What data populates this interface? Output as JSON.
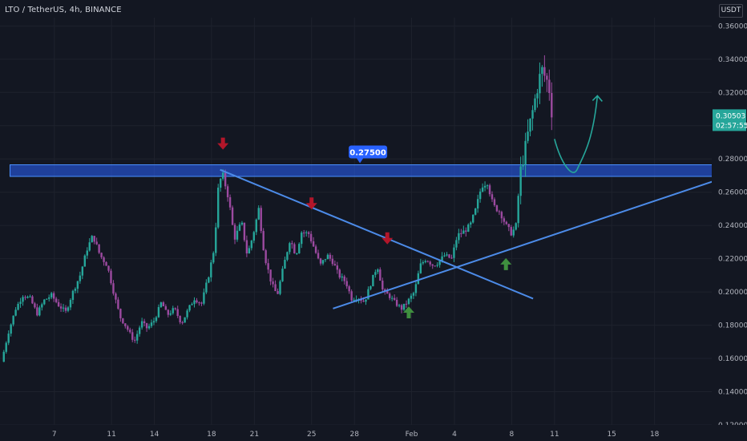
{
  "header": {
    "symbol_line": "LTO / TetherUS, 4h, BINANCE",
    "currency": "USDT"
  },
  "colors": {
    "background": "#131722",
    "grid": "#1e222d",
    "bull": "#26a69a",
    "bear": "#9c4aa0",
    "axis_text": "#b2b5be",
    "drawing": "#4c8be8",
    "zone_fill": "#2962ff",
    "down_arrow": "#b2162a",
    "up_arrow": "#3f8f3f",
    "projection": "#26a69a",
    "price_label": "#26a69a"
  },
  "chart_data": {
    "type": "candlestick",
    "timeframe": "4h",
    "exchange": "BINANCE",
    "ylim": [
      0.12,
      0.365
    ],
    "y_ticks": [
      "0.36000",
      "0.34000",
      "0.32000",
      "0.30000",
      "0.28000",
      "0.26000",
      "0.24000",
      "0.22000",
      "0.20000",
      "0.18000",
      "0.16000",
      "0.14000",
      "0.12000"
    ],
    "x_ticks": [
      {
        "label": "7",
        "day": 7
      },
      {
        "label": "11",
        "day": 11
      },
      {
        "label": "14",
        "day": 14
      },
      {
        "label": "18",
        "day": 18
      },
      {
        "label": "21",
        "day": 21
      },
      {
        "label": "25",
        "day": 25
      },
      {
        "label": "28",
        "day": 28
      },
      {
        "label": "Feb",
        "day": 32
      },
      {
        "label": "4",
        "day": 35
      },
      {
        "label": "8",
        "day": 39
      },
      {
        "label": "11",
        "day": 42
      },
      {
        "label": "15",
        "day": 46
      },
      {
        "label": "18",
        "day": 49
      }
    ],
    "price_path": [
      [
        3.3,
        0.158
      ],
      [
        3.8,
        0.176
      ],
      [
        4.3,
        0.19
      ],
      [
        4.8,
        0.198
      ],
      [
        5.3,
        0.196
      ],
      [
        5.8,
        0.187
      ],
      [
        6.3,
        0.195
      ],
      [
        6.8,
        0.198
      ],
      [
        7.3,
        0.192
      ],
      [
        7.8,
        0.188
      ],
      [
        8.3,
        0.2
      ],
      [
        8.8,
        0.21
      ],
      [
        9.3,
        0.226
      ],
      [
        9.7,
        0.234
      ],
      [
        10.2,
        0.222
      ],
      [
        10.7,
        0.216
      ],
      [
        11.2,
        0.198
      ],
      [
        11.6,
        0.185
      ],
      [
        12.1,
        0.178
      ],
      [
        12.6,
        0.17
      ],
      [
        13.1,
        0.182
      ],
      [
        13.5,
        0.178
      ],
      [
        14.0,
        0.183
      ],
      [
        14.5,
        0.194
      ],
      [
        14.9,
        0.186
      ],
      [
        15.4,
        0.19
      ],
      [
        15.9,
        0.181
      ],
      [
        16.4,
        0.19
      ],
      [
        16.8,
        0.196
      ],
      [
        17.3,
        0.193
      ],
      [
        17.8,
        0.21
      ],
      [
        18.2,
        0.227
      ],
      [
        18.5,
        0.266
      ],
      [
        18.8,
        0.27
      ],
      [
        19.2,
        0.256
      ],
      [
        19.6,
        0.232
      ],
      [
        20.1,
        0.242
      ],
      [
        20.5,
        0.222
      ],
      [
        20.9,
        0.234
      ],
      [
        21.3,
        0.25
      ],
      [
        21.7,
        0.222
      ],
      [
        22.2,
        0.205
      ],
      [
        22.6,
        0.198
      ],
      [
        23.0,
        0.214
      ],
      [
        23.5,
        0.232
      ],
      [
        23.9,
        0.222
      ],
      [
        24.3,
        0.236
      ],
      [
        24.8,
        0.235
      ],
      [
        25.2,
        0.226
      ],
      [
        25.6,
        0.216
      ],
      [
        26.1,
        0.222
      ],
      [
        26.5,
        0.218
      ],
      [
        26.9,
        0.21
      ],
      [
        27.4,
        0.206
      ],
      [
        27.8,
        0.196
      ],
      [
        28.2,
        0.197
      ],
      [
        28.7,
        0.194
      ],
      [
        29.1,
        0.204
      ],
      [
        29.6,
        0.216
      ],
      [
        30.0,
        0.2
      ],
      [
        30.4,
        0.198
      ],
      [
        30.9,
        0.193
      ],
      [
        31.3,
        0.19
      ],
      [
        31.7,
        0.194
      ],
      [
        32.2,
        0.2
      ],
      [
        32.6,
        0.216
      ],
      [
        33.0,
        0.22
      ],
      [
        33.5,
        0.216
      ],
      [
        33.9,
        0.218
      ],
      [
        34.3,
        0.222
      ],
      [
        34.8,
        0.22
      ],
      [
        35.2,
        0.234
      ],
      [
        35.6,
        0.236
      ],
      [
        36.1,
        0.24
      ],
      [
        36.5,
        0.25
      ],
      [
        36.9,
        0.264
      ],
      [
        37.3,
        0.266
      ],
      [
        37.7,
        0.252
      ],
      [
        38.2,
        0.248
      ],
      [
        38.6,
        0.24
      ],
      [
        39.0,
        0.235
      ],
      [
        39.3,
        0.24
      ],
      [
        39.6,
        0.272
      ],
      [
        39.9,
        0.284
      ],
      [
        40.2,
        0.298
      ],
      [
        40.5,
        0.31
      ],
      [
        40.8,
        0.323
      ],
      [
        41.1,
        0.334
      ],
      [
        41.4,
        0.328
      ],
      [
        41.6,
        0.325
      ],
      [
        41.8,
        0.305
      ]
    ],
    "resistance_zone": {
      "low": 0.2695,
      "high": 0.2765,
      "label": "0.27500"
    },
    "trendlines": [
      {
        "name": "descending",
        "from": [
          18.6,
          0.2735
        ],
        "to": [
          40.5,
          0.196
        ]
      },
      {
        "name": "ascending",
        "from": [
          26.5,
          0.19
        ],
        "to": [
          55.0,
          0.272
        ]
      }
    ],
    "down_arrows": [
      [
        18.8,
        0.289
      ],
      [
        25.0,
        0.253
      ],
      [
        30.3,
        0.232
      ]
    ],
    "up_arrows": [
      [
        31.8,
        0.188
      ],
      [
        38.6,
        0.217
      ]
    ],
    "projection": [
      [
        42.0,
        0.292
      ],
      [
        43.6,
        0.274
      ],
      [
        45.0,
        0.318
      ]
    ],
    "last_price": "0.30503",
    "countdown": "02:57:55"
  }
}
